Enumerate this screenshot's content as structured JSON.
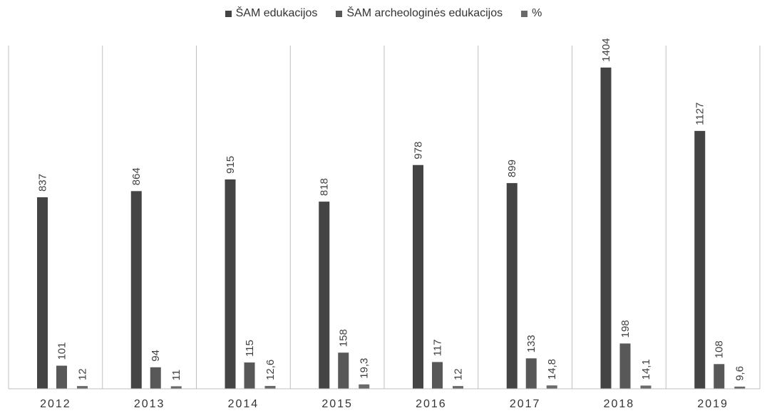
{
  "chart_data": {
    "type": "bar",
    "categories": [
      "2012",
      "2013",
      "2014",
      "2015",
      "2016",
      "2017",
      "2018",
      "2019"
    ],
    "series": [
      {
        "name": "ŠAM edukacijos",
        "color": "#444444",
        "values": [
          837,
          864,
          915,
          818,
          978,
          899,
          1404,
          1127
        ],
        "labels": [
          "837",
          "864",
          "915",
          "818",
          "978",
          "899",
          "1404",
          "1127"
        ]
      },
      {
        "name": "ŠAM archeologinės edukacijos",
        "color": "#585858",
        "values": [
          101,
          94,
          115,
          158,
          117,
          133,
          198,
          108
        ],
        "labels": [
          "101",
          "94",
          "115",
          "158",
          "117",
          "133",
          "198",
          "108"
        ]
      },
      {
        "name": "%",
        "color": "#6a6a6a",
        "values": [
          12,
          11,
          12.6,
          19.3,
          12,
          14.8,
          14.1,
          9.6
        ],
        "labels": [
          "12",
          "11",
          "12,6",
          "19,3",
          "12",
          "14,8",
          "14,1",
          "9,6"
        ]
      }
    ],
    "title": "",
    "xlabel": "",
    "ylabel": "",
    "ylim": [
      0,
      1500
    ],
    "grid": false,
    "legend_position": "top-center"
  }
}
